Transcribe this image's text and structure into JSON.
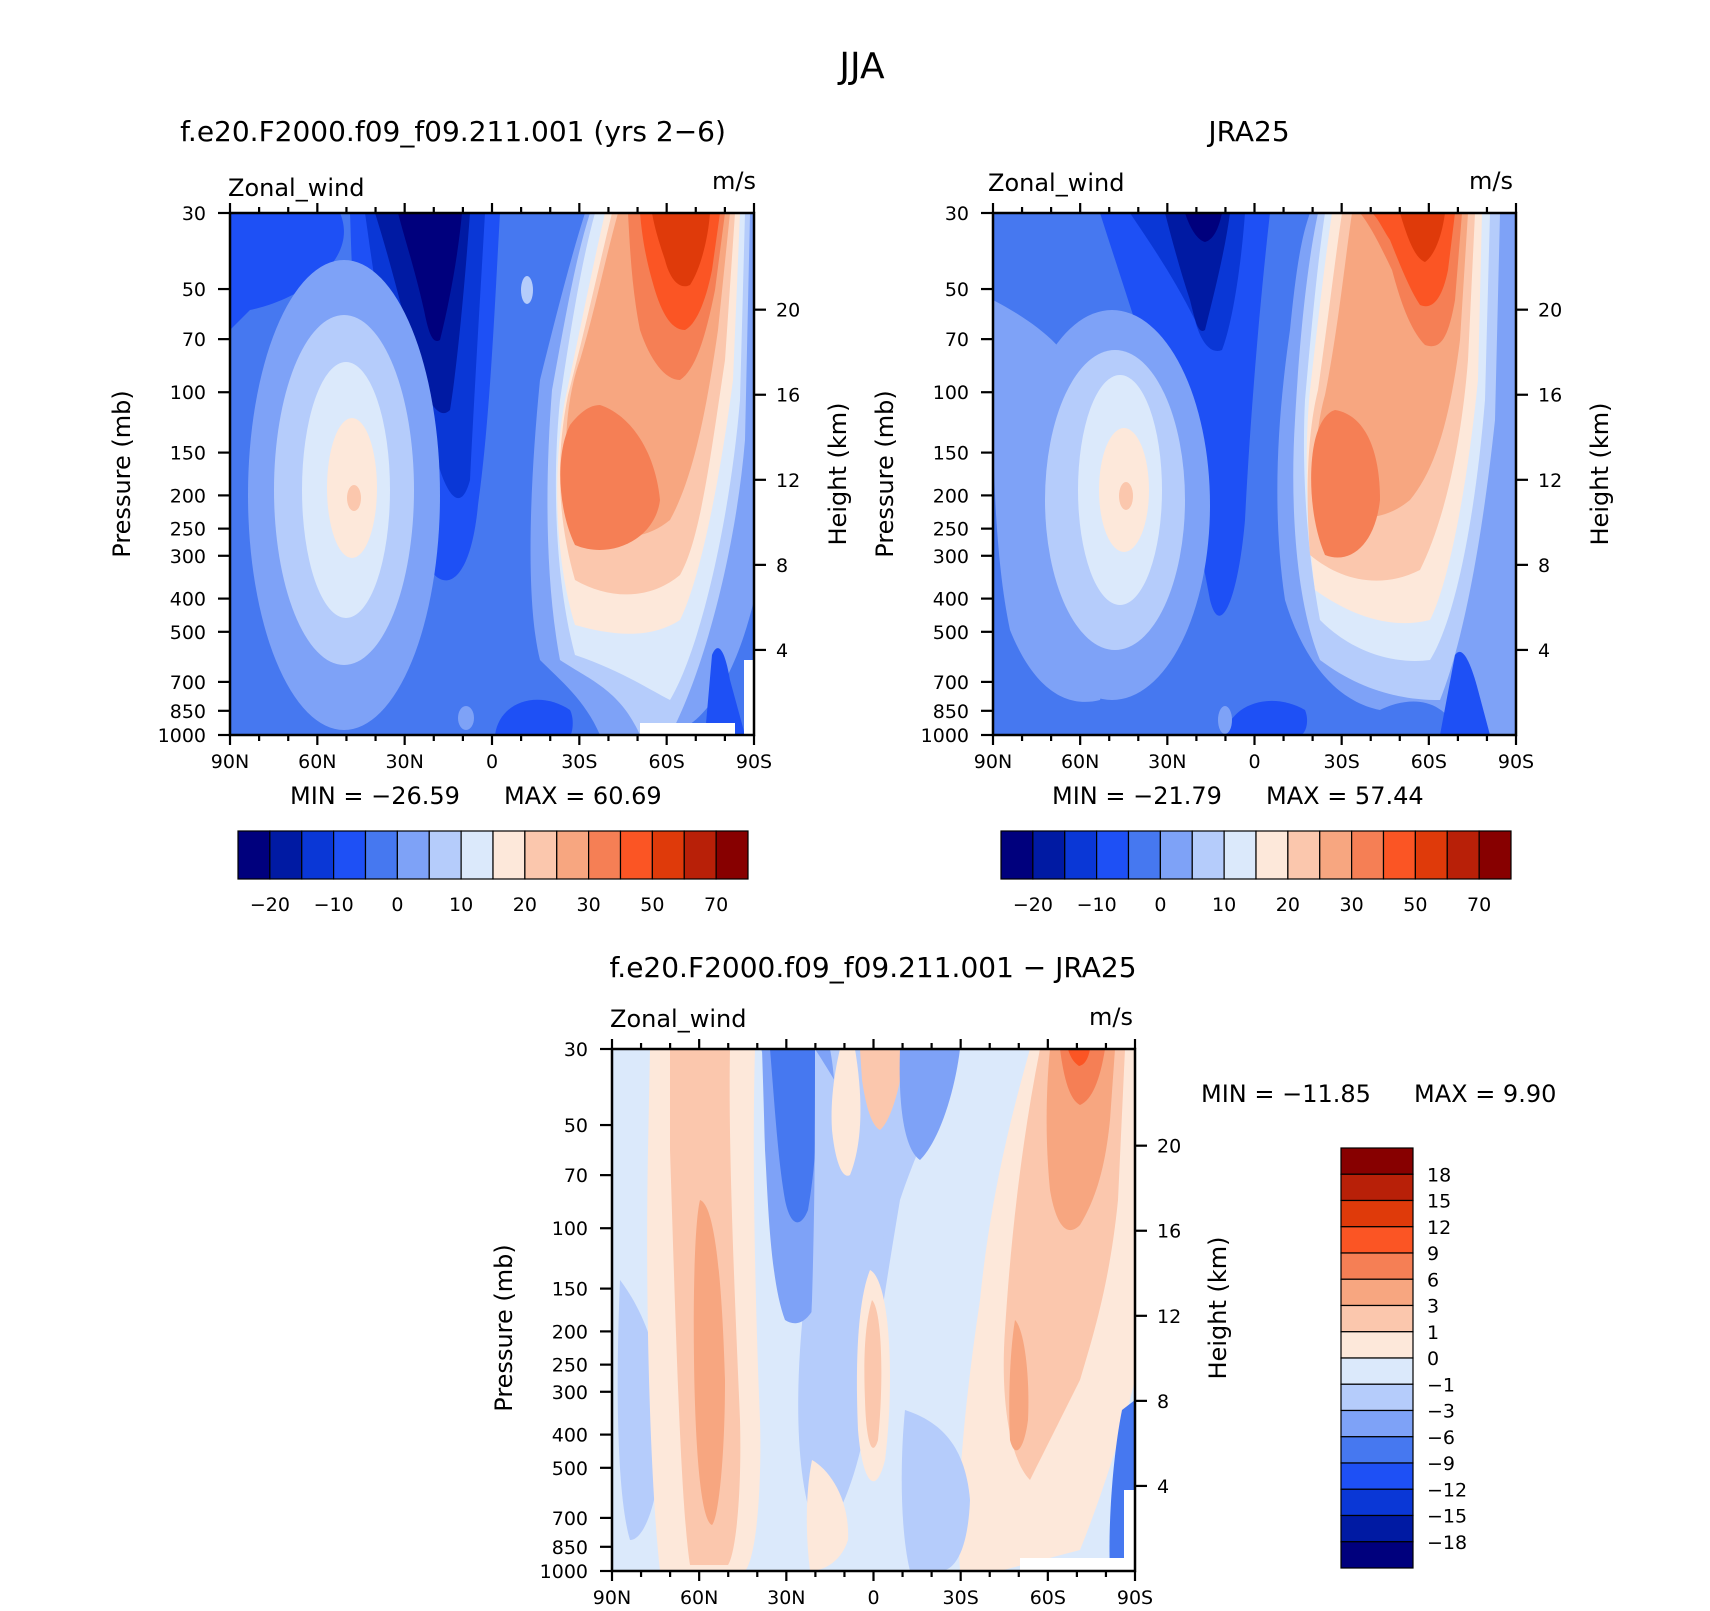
{
  "figure_title": "JJA",
  "chart_data": [
    {
      "type": "contour",
      "title": "f.e20.F2000.f09_f09.211.001 (yrs 2−6)",
      "variable": "Zonal_wind",
      "units": "m/s",
      "ylabel": "Pressure (mb)",
      "ylabel_right": "Height (km)",
      "x_ticks": [
        "90N",
        "60N",
        "30N",
        "0",
        "30S",
        "60S",
        "90S"
      ],
      "y_ticks": [
        "30",
        "50",
        "70",
        "100",
        "150",
        "200",
        "250",
        "300",
        "400",
        "500",
        "700",
        "850",
        "1000"
      ],
      "y_right_ticks": [
        "20",
        "16",
        "12",
        "8",
        "4"
      ],
      "stats": {
        "min_label": "MIN = −26.59",
        "max_label": "MAX =   60.69",
        "min": -26.59,
        "max": 60.69
      },
      "colorbar": {
        "levels": [
          -25,
          -20,
          -15,
          -10,
          -5,
          0,
          5,
          10,
          15,
          20,
          25,
          30,
          40,
          50,
          60,
          70,
          80
        ],
        "tick_labels": [
          "−20",
          "−10",
          "0",
          "10",
          "20",
          "30",
          "50",
          "70"
        ],
        "colors": [
          "#00007d",
          "#001aa3",
          "#0a37d6",
          "#1e50f5",
          "#4678f0",
          "#7ea2f7",
          "#b5ccfb",
          "#dbe9fb",
          "#fde8da",
          "#fbc7ad",
          "#f7a680",
          "#f57f55",
          "#fb5524",
          "#df3a0a",
          "#b82008",
          "#870000"
        ]
      }
    },
    {
      "type": "contour",
      "title": "JRA25",
      "variable": "Zonal_wind",
      "units": "m/s",
      "ylabel": "Pressure (mb)",
      "ylabel_right": "Height (km)",
      "x_ticks": [
        "90N",
        "60N",
        "30N",
        "0",
        "30S",
        "60S",
        "90S"
      ],
      "y_ticks": [
        "30",
        "50",
        "70",
        "100",
        "150",
        "200",
        "250",
        "300",
        "400",
        "500",
        "700",
        "850",
        "1000"
      ],
      "y_right_ticks": [
        "20",
        "16",
        "12",
        "8",
        "4"
      ],
      "stats": {
        "min_label": "MIN = −21.79",
        "max_label": "MAX =   57.44",
        "min": -21.79,
        "max": 57.44
      },
      "colorbar": {
        "levels": [
          -25,
          -20,
          -15,
          -10,
          -5,
          0,
          5,
          10,
          15,
          20,
          25,
          30,
          40,
          50,
          60,
          70,
          80
        ],
        "tick_labels": [
          "−20",
          "−10",
          "0",
          "10",
          "20",
          "30",
          "50",
          "70"
        ],
        "colors": [
          "#00007d",
          "#001aa3",
          "#0a37d6",
          "#1e50f5",
          "#4678f0",
          "#7ea2f7",
          "#b5ccfb",
          "#dbe9fb",
          "#fde8da",
          "#fbc7ad",
          "#f7a680",
          "#f57f55",
          "#fb5524",
          "#df3a0a",
          "#b82008",
          "#870000"
        ]
      }
    },
    {
      "type": "contour",
      "title": "f.e20.F2000.f09_f09.211.001 − JRA25",
      "variable": "Zonal_wind",
      "units": "m/s",
      "ylabel": "Pressure (mb)",
      "ylabel_right": "Height (km)",
      "x_ticks": [
        "90N",
        "60N",
        "30N",
        "0",
        "30S",
        "60S",
        "90S"
      ],
      "y_ticks": [
        "30",
        "50",
        "70",
        "100",
        "150",
        "200",
        "250",
        "300",
        "400",
        "500",
        "700",
        "850",
        "1000"
      ],
      "y_right_ticks": [
        "20",
        "16",
        "12",
        "8",
        "4"
      ],
      "stats": {
        "min_label": "MIN = −11.85",
        "max_label": "MAX =    9.90",
        "min": -11.85,
        "max": 9.9
      },
      "colorbar": {
        "levels": [
          18,
          15,
          12,
          9,
          6,
          3,
          1,
          0,
          -1,
          -3,
          -6,
          -9,
          -12,
          -15,
          -18
        ],
        "tick_labels": [
          "18",
          "15",
          "12",
          "9",
          "6",
          "3",
          "1",
          "0",
          "−1",
          "−3",
          "−6",
          "−9",
          "−12",
          "−15",
          "−18"
        ],
        "colors": [
          "#870000",
          "#b82008",
          "#df3a0a",
          "#fb5524",
          "#f57f55",
          "#f7a680",
          "#fbc7ad",
          "#fde8da",
          "#dbe9fb",
          "#b5ccfb",
          "#7ea2f7",
          "#4678f0",
          "#1e50f5",
          "#0a37d6",
          "#001aa3",
          "#00007d"
        ]
      }
    }
  ]
}
